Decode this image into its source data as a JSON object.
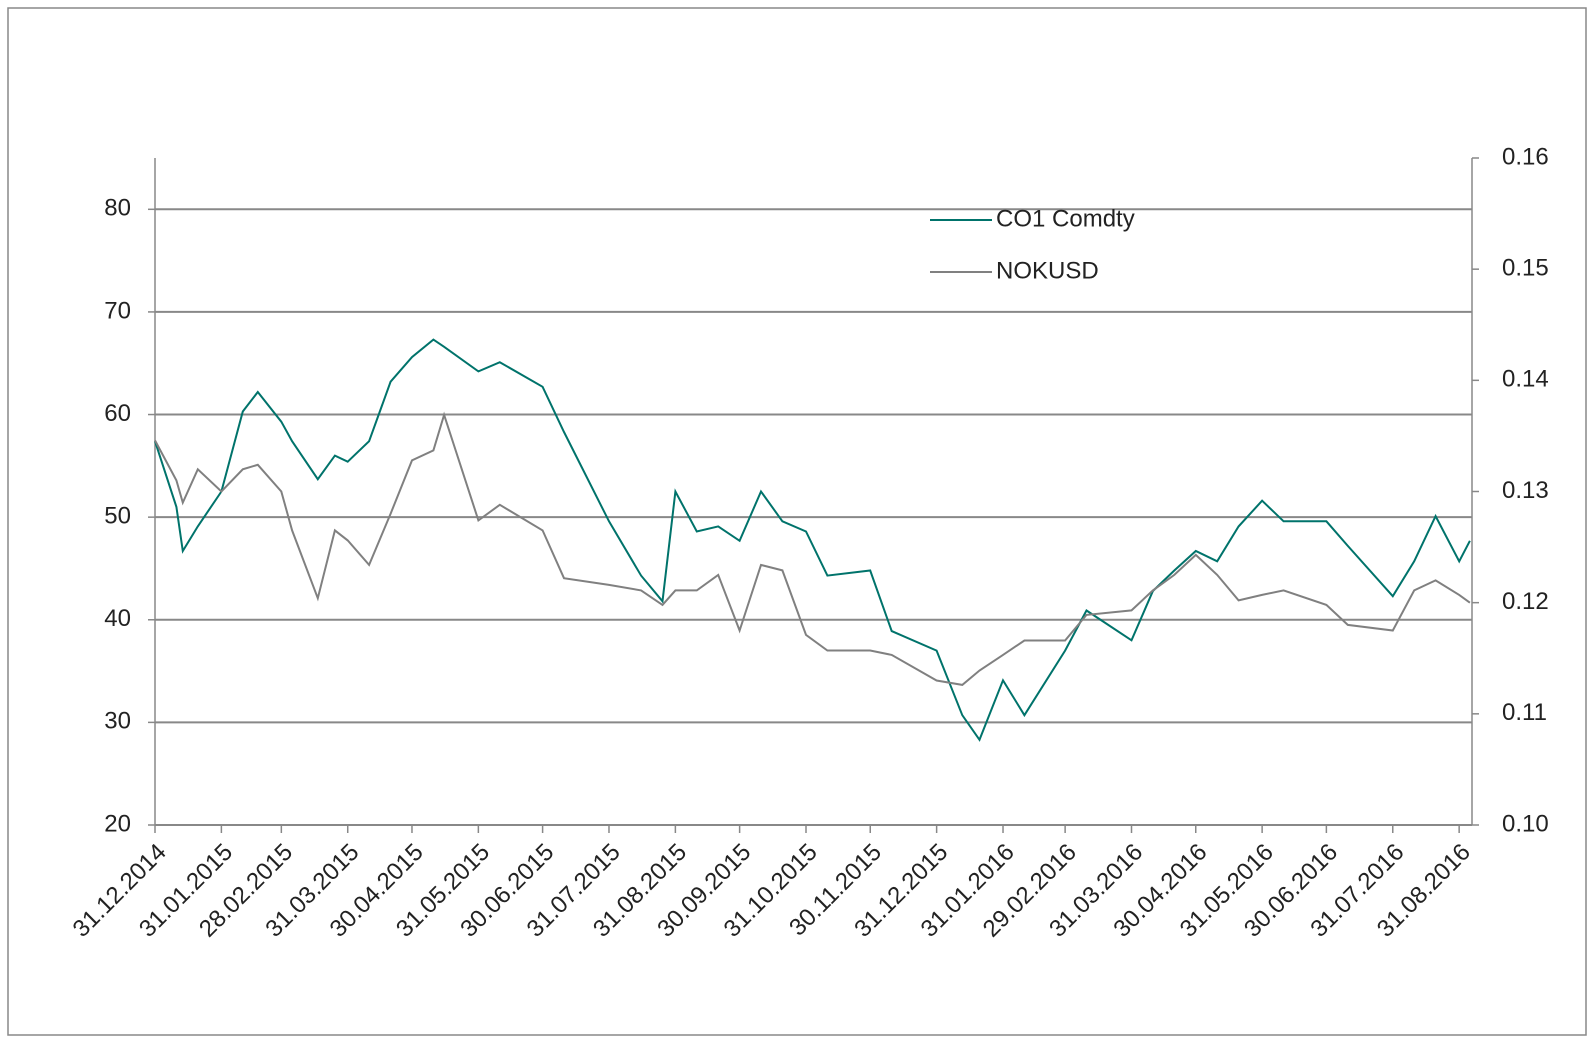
{
  "chart_data": {
    "type": "line",
    "x": [
      "31.12.2014",
      "10.01.2015",
      "13.01.2015",
      "20.01.2015",
      "31.01.2015",
      "10.02.2015",
      "17.02.2015",
      "28.02.2015",
      "05.03.2015",
      "17.03.2015",
      "25.03.2015",
      "31.03.2015",
      "10.04.2015",
      "20.04.2015",
      "30.04.2015",
      "10.05.2015",
      "15.05.2015",
      "31.05.2015",
      "10.06.2015",
      "30.06.2015",
      "10.07.2015",
      "31.07.2015",
      "15.08.2015",
      "25.08.2015",
      "31.08.2015",
      "10.09.2015",
      "20.09.2015",
      "30.09.2015",
      "10.10.2015",
      "20.10.2015",
      "31.10.2015",
      "10.11.2015",
      "30.11.2015",
      "10.12.2015",
      "31.12.2015",
      "12.01.2016",
      "20.01.2016",
      "31.01.2016",
      "10.02.2016",
      "29.02.2016",
      "10.03.2016",
      "31.03.2016",
      "10.04.2016",
      "20.04.2016",
      "30.04.2016",
      "10.05.2016",
      "20.05.2016",
      "31.05.2016",
      "10.06.2016",
      "30.06.2016",
      "10.07.2016",
      "31.07.2016",
      "10.08.2016",
      "20.08.2016",
      "31.08.2016",
      "05.09.2016"
    ],
    "series": [
      {
        "name": "CO1 Comdty",
        "color": "#00736b",
        "values": [
          57.4,
          51,
          46.7,
          49.1,
          52.5,
          60.3,
          62.2,
          59.3,
          57.4,
          53.7,
          56,
          55.4,
          57.4,
          63.2,
          65.6,
          67.3,
          66.6,
          64.2,
          65.1,
          62.7,
          58.3,
          49.6,
          44.3,
          41.8,
          52.5,
          48.6,
          49.1,
          47.7,
          52.5,
          49.6,
          48.6,
          44.3,
          44.8,
          38.9,
          37,
          30.7,
          28.3,
          34.1,
          30.7,
          37,
          40.9,
          38,
          42.8,
          44.8,
          46.7,
          45.7,
          49.1,
          51.6,
          49.6,
          49.6,
          47.2,
          42.3,
          45.7,
          50.1,
          45.7,
          47.7
        ]
      },
      {
        "name": "NOKUSD",
        "color": "#808080",
        "axis": "y2",
        "values": [
          0.1346,
          0.131,
          0.129,
          0.132,
          0.13,
          0.132,
          0.1324,
          0.13,
          0.1265,
          0.1204,
          0.1265,
          0.1256,
          0.1234,
          0.128,
          0.1328,
          0.1337,
          0.1369,
          0.1274,
          0.1288,
          0.1265,
          0.1222,
          0.1216,
          0.1211,
          0.1198,
          0.1211,
          0.1211,
          0.1225,
          0.1175,
          0.1234,
          0.1229,
          0.1171,
          0.1157,
          0.1157,
          0.1153,
          0.113,
          0.1126,
          0.1139,
          0.1153,
          0.1166,
          0.1166,
          0.1189,
          0.1193,
          0.1211,
          0.1225,
          0.1243,
          0.1225,
          0.1202,
          0.1207,
          0.1211,
          0.1198,
          0.118,
          0.1175,
          0.1211,
          0.122,
          0.1207,
          0.12
        ]
      }
    ],
    "xlim": [
      "31.12.2014",
      "06.09.2016"
    ],
    "xticks": [
      "31.12.2014",
      "31.01.2015",
      "28.02.2015",
      "31.03.2015",
      "30.04.2015",
      "31.05.2015",
      "30.06.2015",
      "31.07.2015",
      "31.08.2015",
      "30.09.2015",
      "31.10.2015",
      "30.11.2015",
      "31.12.2015",
      "31.01.2016",
      "29.02.2016",
      "31.03.2016",
      "30.04.2016",
      "31.05.2016",
      "30.06.2016",
      "31.07.2016",
      "31.08.2016"
    ],
    "ylim": [
      20,
      85
    ],
    "yticks": [
      20,
      30,
      40,
      50,
      60,
      70,
      80
    ],
    "y2lim": [
      0.1,
      0.16
    ],
    "y2ticks": [
      {
        "value": 0.1,
        "label": "0.10"
      },
      0.11,
      0.12,
      0.13,
      0.14,
      0.15,
      0.16
    ],
    "grid": true,
    "legend": "top-right"
  }
}
